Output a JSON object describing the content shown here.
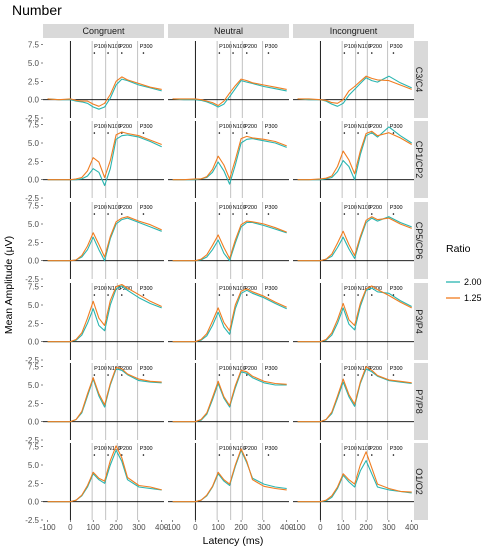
{
  "chart_data": {
    "type": "line",
    "title": "Number",
    "xlabel": "Latency (ms)",
    "ylabel": "Mean Amplitude (μV)",
    "xlim": [
      -120,
      410
    ],
    "ylim": [
      -2.5,
      8
    ],
    "xticks": [
      -100,
      0,
      100,
      200,
      300,
      400
    ],
    "yticks": [
      -2.5,
      0.0,
      2.5,
      5.0,
      7.5
    ],
    "ytick_labels": [
      "-2.5",
      "0.0",
      "2.5",
      "5.0",
      "7.5"
    ],
    "conditions": [
      "Congruent",
      "Neutral",
      "Incongruent"
    ],
    "electrodes": [
      "C3/C4",
      "CP1/CP2",
      "CP5/CP6",
      "P3/P4",
      "P7/P8",
      "O1/O2"
    ],
    "legend": {
      "title": "Ratio",
      "entries": [
        {
          "label": "2.00",
          "color": "#2ab5b0"
        },
        {
          "label": "1.25",
          "color": "#f07d21"
        }
      ]
    },
    "component_lines": [
      {
        "label": "P100",
        "x": 95
      },
      {
        "label": "N100",
        "x": 155
      },
      {
        "label": "P200",
        "x": 205
      },
      {
        "label": "P300",
        "x": 295
      }
    ],
    "significance_x": [
      105,
      165,
      225,
      320
    ],
    "x": [
      -100,
      -50,
      0,
      25,
      50,
      75,
      100,
      125,
      150,
      175,
      200,
      225,
      250,
      300,
      350,
      400
    ],
    "series": [
      {
        "condition": "Congruent",
        "electrode": "C3/C4",
        "ratio": "2.00",
        "values": [
          0.1,
          0.0,
          0.0,
          -0.2,
          -0.3,
          -0.5,
          -1.0,
          -1.3,
          -1.0,
          0.2,
          2.0,
          2.8,
          2.6,
          2.0,
          1.6,
          1.2
        ]
      },
      {
        "condition": "Congruent",
        "electrode": "C3/C4",
        "ratio": "1.25",
        "values": [
          0.1,
          0.0,
          0.1,
          -0.1,
          -0.2,
          -0.2,
          -0.6,
          -0.9,
          -0.5,
          0.7,
          2.5,
          3.1,
          2.7,
          2.2,
          1.7,
          1.4
        ]
      },
      {
        "condition": "Neutral",
        "electrode": "C3/C4",
        "ratio": "2.00",
        "values": [
          0.1,
          0.0,
          0.0,
          -0.1,
          -0.3,
          -0.6,
          -1.0,
          -0.6,
          0.4,
          1.5,
          2.6,
          2.4,
          2.2,
          1.8,
          1.5,
          1.2
        ]
      },
      {
        "condition": "Neutral",
        "electrode": "C3/C4",
        "ratio": "1.25",
        "values": [
          0.1,
          0.1,
          0.1,
          0.0,
          -0.2,
          -0.4,
          -0.8,
          -0.2,
          0.9,
          1.9,
          2.8,
          2.6,
          2.3,
          2.0,
          1.7,
          1.4
        ]
      },
      {
        "condition": "Incongruent",
        "electrode": "C3/C4",
        "ratio": "2.00",
        "values": [
          0.1,
          0.0,
          0.0,
          -0.2,
          -0.6,
          -0.9,
          -0.5,
          0.6,
          1.4,
          2.2,
          3.0,
          2.6,
          2.4,
          3.2,
          2.3,
          1.6
        ]
      },
      {
        "condition": "Incongruent",
        "electrode": "C3/C4",
        "ratio": "1.25",
        "values": [
          0.1,
          0.1,
          0.0,
          -0.1,
          -0.4,
          -0.5,
          0.0,
          1.2,
          1.8,
          2.5,
          3.2,
          2.9,
          2.7,
          2.6,
          2.0,
          1.4
        ]
      },
      {
        "condition": "Congruent",
        "electrode": "CP1/CP2",
        "ratio": "2.00",
        "values": [
          0.0,
          0.0,
          0.0,
          0.0,
          0.1,
          0.5,
          1.5,
          1.0,
          -0.8,
          1.5,
          5.5,
          6.0,
          6.1,
          5.8,
          5.2,
          4.5
        ]
      },
      {
        "condition": "Congruent",
        "electrode": "CP1/CP2",
        "ratio": "1.25",
        "values": [
          0.0,
          0.0,
          0.0,
          0.1,
          0.3,
          1.2,
          3.0,
          2.4,
          0.3,
          2.6,
          6.1,
          6.5,
          6.3,
          6.0,
          5.4,
          4.8
        ]
      },
      {
        "condition": "Neutral",
        "electrode": "CP1/CP2",
        "ratio": "2.00",
        "values": [
          0.0,
          0.0,
          0.0,
          0.1,
          0.3,
          1.0,
          2.4,
          1.2,
          -0.6,
          2.0,
          5.0,
          5.5,
          5.6,
          5.3,
          5.0,
          4.4
        ]
      },
      {
        "condition": "Neutral",
        "electrode": "CP1/CP2",
        "ratio": "1.25",
        "values": [
          0.0,
          0.0,
          0.1,
          0.1,
          0.4,
          1.4,
          3.2,
          2.0,
          0.1,
          2.7,
          5.6,
          5.9,
          5.7,
          5.5,
          5.2,
          4.6
        ]
      },
      {
        "condition": "Incongruent",
        "electrode": "CP1/CP2",
        "ratio": "2.00",
        "values": [
          0.0,
          0.0,
          0.0,
          0.1,
          0.3,
          1.1,
          2.6,
          1.8,
          0.0,
          3.4,
          6.0,
          6.4,
          5.8,
          7.2,
          6.0,
          5.0
        ]
      },
      {
        "condition": "Incongruent",
        "electrode": "CP1/CP2",
        "ratio": "1.25",
        "values": [
          0.0,
          0.0,
          0.1,
          0.2,
          0.5,
          1.8,
          3.9,
          2.7,
          0.8,
          3.9,
          6.3,
          6.6,
          6.0,
          6.4,
          5.7,
          4.8
        ]
      },
      {
        "condition": "Congruent",
        "electrode": "CP5/CP6",
        "ratio": "2.00",
        "values": [
          0.0,
          0.0,
          0.0,
          0.1,
          0.5,
          1.5,
          3.2,
          1.5,
          0.0,
          3.0,
          5.0,
          5.6,
          5.8,
          5.2,
          4.6,
          4.0
        ]
      },
      {
        "condition": "Congruent",
        "electrode": "CP5/CP6",
        "ratio": "1.25",
        "values": [
          0.0,
          0.0,
          0.0,
          0.1,
          0.7,
          2.0,
          3.8,
          2.2,
          0.5,
          3.3,
          5.3,
          5.8,
          6.0,
          5.4,
          4.9,
          4.2
        ]
      },
      {
        "condition": "Neutral",
        "electrode": "CP5/CP6",
        "ratio": "2.00",
        "values": [
          0.0,
          0.0,
          0.0,
          0.1,
          0.5,
          1.5,
          2.8,
          1.0,
          0.0,
          2.4,
          4.6,
          5.2,
          5.2,
          4.8,
          4.3,
          3.8
        ]
      },
      {
        "condition": "Neutral",
        "electrode": "CP5/CP6",
        "ratio": "1.25",
        "values": [
          0.0,
          0.0,
          0.0,
          0.2,
          0.8,
          2.1,
          3.5,
          1.8,
          0.3,
          2.8,
          4.9,
          5.4,
          5.3,
          5.0,
          4.5,
          3.9
        ]
      },
      {
        "condition": "Incongruent",
        "electrode": "CP5/CP6",
        "ratio": "2.00",
        "values": [
          0.0,
          0.0,
          0.0,
          0.2,
          0.6,
          1.8,
          3.2,
          1.6,
          0.3,
          3.0,
          5.2,
          5.8,
          5.4,
          6.0,
          5.2,
          4.6
        ]
      },
      {
        "condition": "Incongruent",
        "electrode": "CP5/CP6",
        "ratio": "1.25",
        "values": [
          0.0,
          0.0,
          0.0,
          0.2,
          0.9,
          2.4,
          4.0,
          2.2,
          0.7,
          3.3,
          5.5,
          6.0,
          5.6,
          5.8,
          5.0,
          4.4
        ]
      },
      {
        "condition": "Congruent",
        "electrode": "P3/P4",
        "ratio": "2.00",
        "values": [
          0.0,
          0.0,
          0.0,
          0.2,
          0.9,
          2.5,
          4.5,
          2.2,
          1.5,
          5.0,
          7.2,
          7.6,
          7.0,
          6.0,
          5.2,
          4.6
        ]
      },
      {
        "condition": "Congruent",
        "electrode": "P3/P4",
        "ratio": "1.25",
        "values": [
          0.0,
          0.0,
          0.0,
          0.3,
          1.2,
          3.2,
          5.5,
          3.2,
          2.2,
          5.6,
          7.5,
          7.8,
          7.3,
          6.4,
          5.5,
          4.8
        ]
      },
      {
        "condition": "Neutral",
        "electrode": "P3/P4",
        "ratio": "2.00",
        "values": [
          0.0,
          0.0,
          0.0,
          0.2,
          0.8,
          2.2,
          4.0,
          2.0,
          1.0,
          4.5,
          6.6,
          7.0,
          6.6,
          6.0,
          5.2,
          4.5
        ]
      },
      {
        "condition": "Neutral",
        "electrode": "P3/P4",
        "ratio": "1.25",
        "values": [
          0.0,
          0.0,
          0.0,
          0.3,
          1.1,
          2.8,
          4.6,
          2.6,
          1.5,
          5.0,
          6.9,
          7.2,
          6.8,
          6.2,
          5.4,
          4.7
        ]
      },
      {
        "condition": "Incongruent",
        "electrode": "P3/P4",
        "ratio": "2.00",
        "values": [
          0.0,
          0.0,
          0.0,
          0.2,
          0.9,
          2.5,
          4.6,
          2.4,
          1.6,
          4.8,
          7.0,
          7.3,
          6.8,
          6.6,
          5.6,
          4.8
        ]
      },
      {
        "condition": "Incongruent",
        "electrode": "P3/P4",
        "ratio": "1.25",
        "values": [
          0.0,
          0.0,
          0.0,
          0.3,
          1.2,
          3.0,
          5.2,
          3.0,
          2.2,
          5.2,
          7.2,
          7.6,
          7.1,
          6.3,
          5.4,
          4.6
        ]
      },
      {
        "condition": "Congruent",
        "electrode": "P7/P8",
        "ratio": "2.00",
        "values": [
          0.0,
          0.0,
          0.0,
          0.3,
          1.2,
          3.5,
          5.8,
          3.5,
          2.0,
          5.0,
          7.2,
          7.0,
          6.4,
          5.6,
          5.4,
          5.3
        ]
      },
      {
        "condition": "Congruent",
        "electrode": "P7/P8",
        "ratio": "1.25",
        "values": [
          0.0,
          0.0,
          0.0,
          0.3,
          1.4,
          3.8,
          6.0,
          3.8,
          2.3,
          5.2,
          7.4,
          7.2,
          6.5,
          5.8,
          5.5,
          5.4
        ]
      },
      {
        "condition": "Neutral",
        "electrode": "P7/P8",
        "ratio": "2.00",
        "values": [
          0.0,
          0.0,
          0.0,
          0.2,
          1.0,
          3.0,
          5.2,
          3.2,
          2.0,
          4.6,
          6.8,
          6.6,
          6.0,
          5.3,
          5.0,
          5.0
        ]
      },
      {
        "condition": "Neutral",
        "electrode": "P7/P8",
        "ratio": "1.25",
        "values": [
          0.0,
          0.0,
          0.0,
          0.3,
          1.2,
          3.3,
          5.5,
          3.4,
          2.2,
          4.9,
          7.0,
          6.8,
          6.2,
          5.5,
          5.2,
          5.1
        ]
      },
      {
        "condition": "Incongruent",
        "electrode": "P7/P8",
        "ratio": "2.00",
        "values": [
          0.0,
          0.0,
          0.0,
          0.3,
          1.1,
          3.2,
          5.4,
          3.4,
          2.1,
          5.2,
          7.2,
          6.8,
          6.2,
          5.6,
          5.4,
          5.2
        ]
      },
      {
        "condition": "Incongruent",
        "electrode": "P7/P8",
        "ratio": "1.25",
        "values": [
          0.0,
          0.0,
          0.0,
          0.3,
          1.3,
          3.5,
          5.8,
          3.7,
          2.4,
          5.4,
          7.5,
          7.0,
          6.3,
          5.7,
          5.5,
          5.3
        ]
      },
      {
        "condition": "Congruent",
        "electrode": "O1/O2",
        "ratio": "2.00",
        "values": [
          0.0,
          0.0,
          0.0,
          0.2,
          0.8,
          2.0,
          3.8,
          3.0,
          2.5,
          5.0,
          7.0,
          5.5,
          3.0,
          2.0,
          1.8,
          1.6
        ]
      },
      {
        "condition": "Congruent",
        "electrode": "O1/O2",
        "ratio": "1.25",
        "values": [
          0.0,
          0.0,
          0.0,
          0.2,
          0.9,
          2.2,
          4.0,
          3.2,
          2.8,
          5.6,
          7.6,
          6.0,
          3.3,
          2.2,
          2.0,
          1.6
        ]
      },
      {
        "condition": "Neutral",
        "electrode": "O1/O2",
        "ratio": "2.00",
        "values": [
          0.0,
          0.0,
          0.0,
          0.2,
          0.8,
          2.0,
          3.8,
          2.8,
          2.2,
          4.8,
          7.0,
          5.3,
          3.2,
          2.4,
          2.0,
          1.8
        ]
      },
      {
        "condition": "Neutral",
        "electrode": "O1/O2",
        "ratio": "1.25",
        "values": [
          0.0,
          0.0,
          0.0,
          0.2,
          0.9,
          2.1,
          4.0,
          3.0,
          2.4,
          5.0,
          7.2,
          5.5,
          3.0,
          2.1,
          1.8,
          1.6
        ]
      },
      {
        "condition": "Incongruent",
        "electrode": "O1/O2",
        "ratio": "2.00",
        "values": [
          0.0,
          0.0,
          0.0,
          0.1,
          0.6,
          1.8,
          3.6,
          2.7,
          2.0,
          4.2,
          5.6,
          3.8,
          2.0,
          1.6,
          1.4,
          1.2
        ]
      },
      {
        "condition": "Incongruent",
        "electrode": "O1/O2",
        "ratio": "1.25",
        "values": [
          0.0,
          0.0,
          0.0,
          0.2,
          0.8,
          2.0,
          3.8,
          3.0,
          2.4,
          5.0,
          6.8,
          4.6,
          2.4,
          1.8,
          1.4,
          1.3
        ]
      }
    ]
  }
}
